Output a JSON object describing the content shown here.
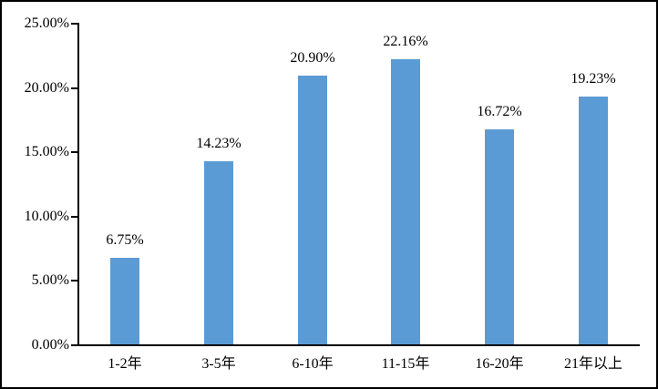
{
  "chart_data": {
    "type": "bar",
    "title": "",
    "xlabel": "",
    "ylabel": "",
    "categories": [
      "1-2年",
      "3-5年",
      "6-10年",
      "11-15年",
      "16-20年",
      "21年以上"
    ],
    "values": [
      6.75,
      14.23,
      20.9,
      22.16,
      16.72,
      19.23
    ],
    "value_labels": [
      "6.75%",
      "14.23%",
      "20.90%",
      "22.16%",
      "16.72%",
      "19.23%"
    ],
    "ylim": [
      0,
      25
    ],
    "y_tick_values": [
      0,
      5,
      10,
      15,
      20,
      25
    ],
    "y_tick_labels": [
      "0.00%",
      "5.00%",
      "10.00%",
      "15.00%",
      "20.00%",
      "25.00%"
    ],
    "bar_color": "#5B9BD5",
    "axis_color": "#000000",
    "text_color": "#000000",
    "background_color": "#FFFFFF",
    "grid": false,
    "legend": false
  }
}
